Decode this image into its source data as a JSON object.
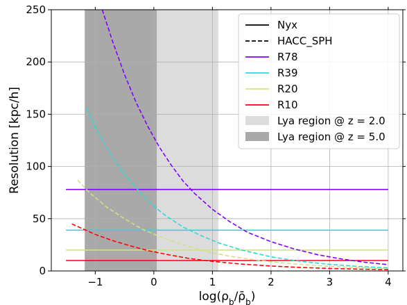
{
  "chart_data": {
    "type": "line",
    "xlabel": "log(ρ_b/ρ̄_b)",
    "ylabel": "Resolution [kpc/h]",
    "xlim": [
      -1.75,
      4.25
    ],
    "ylim": [
      0,
      250
    ],
    "xticks": [
      -1,
      0,
      1,
      2,
      3,
      4
    ],
    "xtick_labels": [
      "−1",
      "0",
      "1",
      "2",
      "3",
      "4"
    ],
    "yticks": [
      0,
      50,
      100,
      150,
      200,
      250
    ],
    "ytick_labels": [
      "0",
      "50",
      "100",
      "150",
      "200",
      "250"
    ],
    "grid": true,
    "legend_position": "top-right",
    "shaded_regions": [
      {
        "name": "Lya region @ z = 2.0",
        "x": [
          -0.5,
          1.1
        ],
        "color": "#dcdcdc"
      },
      {
        "name": "Lya region @ z = 5.0",
        "x": [
          -1.18,
          0.05
        ],
        "color": "#a9a9a9"
      }
    ],
    "legend": [
      {
        "label": "Nyx",
        "kind": "line",
        "style": "solid",
        "color": "#000000"
      },
      {
        "label": "HACC_SPH",
        "kind": "line",
        "style": "dashed",
        "color": "#000000"
      },
      {
        "label": "R78",
        "kind": "line",
        "style": "solid",
        "color": "#8000ff"
      },
      {
        "label": "R39",
        "kind": "line",
        "style": "solid",
        "color": "#2ed8d8"
      },
      {
        "label": "R20",
        "kind": "line",
        "style": "solid",
        "color": "#cfe285"
      },
      {
        "label": "R10",
        "kind": "line",
        "style": "solid",
        "color": "#ff0000"
      },
      {
        "label": "Lya region @ z = 2.0",
        "kind": "patch",
        "color": "#dcdcdc"
      },
      {
        "label": "Lya region @ z = 5.0",
        "kind": "patch",
        "color": "#a9a9a9"
      }
    ],
    "series": [
      {
        "name": "R78",
        "code": "Nyx",
        "style": "solid",
        "color": "#8000ff",
        "x": [
          -1.5,
          4.0
        ],
        "y": [
          78,
          78
        ]
      },
      {
        "name": "R39",
        "code": "Nyx",
        "style": "solid",
        "color": "#2ed8d8",
        "x": [
          -1.5,
          4.0
        ],
        "y": [
          39,
          39
        ]
      },
      {
        "name": "R20",
        "code": "Nyx",
        "style": "solid",
        "color": "#cfe285",
        "x": [
          -1.5,
          4.0
        ],
        "y": [
          20,
          20
        ]
      },
      {
        "name": "R10",
        "code": "Nyx",
        "style": "solid",
        "color": "#ff0000",
        "x": [
          -1.5,
          4.0
        ],
        "y": [
          10,
          10
        ]
      },
      {
        "name": "R78",
        "code": "HACC_SPH",
        "style": "dashed",
        "color": "#8000ff",
        "x": [
          -0.88,
          -0.7,
          -0.5,
          -0.3,
          -0.1,
          0.1,
          0.3,
          0.5,
          0.7,
          1.0,
          1.3,
          1.6,
          2.0,
          2.4,
          2.8,
          3.2,
          3.6,
          4.0
        ],
        "y": [
          250,
          219,
          188,
          161,
          138,
          118,
          101,
          86,
          74,
          59,
          47,
          37,
          28,
          21,
          15.5,
          11.5,
          8.3,
          6
        ]
      },
      {
        "name": "R39",
        "code": "HACC_SPH",
        "style": "dashed",
        "color": "#2ed8d8",
        "x": [
          -1.15,
          -1.0,
          -0.8,
          -0.6,
          -0.4,
          -0.2,
          0.0,
          0.2,
          0.5,
          0.8,
          1.1,
          1.5,
          2.0,
          2.5,
          3.0,
          3.5,
          4.0
        ],
        "y": [
          156,
          138,
          117,
          100,
          86,
          73,
          62,
          53,
          42,
          34,
          27,
          20,
          13.5,
          9.2,
          6.3,
          4.3,
          3
        ]
      },
      {
        "name": "R20",
        "code": "HACC_SPH",
        "style": "dashed",
        "color": "#cfe285",
        "x": [
          -1.3,
          -1.1,
          -0.8,
          -0.5,
          -0.2,
          0.1,
          0.4,
          0.8,
          1.2,
          1.6,
          2.0,
          2.5,
          3.0,
          3.5,
          4.0
        ],
        "y": [
          87,
          75,
          61,
          50,
          40,
          33,
          27,
          20,
          15,
          11.5,
          8.8,
          6.2,
          4.4,
          3.1,
          2.2
        ]
      },
      {
        "name": "R10",
        "code": "HACC_SPH",
        "style": "dashed",
        "color": "#ff0000",
        "x": [
          -1.4,
          -1.2,
          -1.0,
          -0.7,
          -0.4,
          -0.1,
          0.2,
          0.6,
          1.0,
          1.5,
          2.0,
          2.5,
          3.0,
          3.5,
          4.0
        ],
        "y": [
          45,
          40,
          35,
          29,
          24,
          19.5,
          16,
          12,
          9.2,
          6.6,
          4.7,
          3.4,
          2.4,
          1.7,
          1.2
        ]
      }
    ]
  }
}
